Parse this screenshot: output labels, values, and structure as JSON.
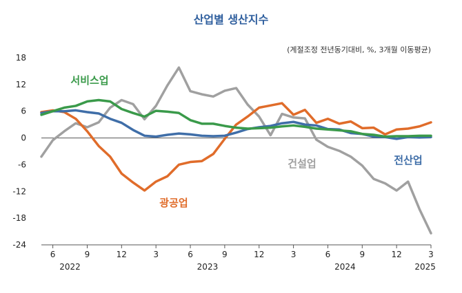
{
  "chart_data": {
    "type": "line",
    "title": "산업별 생산지수",
    "subtitle": "(계절조정 전년동기대비, %, 3개월 이동평균)",
    "ylim": [
      -24,
      18
    ],
    "yticks": [
      18,
      12,
      6,
      0,
      -6,
      -12,
      -18,
      -24
    ],
    "grid": false,
    "legend": "inline labels",
    "month_labels": [
      {
        "index": 1,
        "label": "6"
      },
      {
        "index": 4,
        "label": "9"
      },
      {
        "index": 7,
        "label": "12"
      },
      {
        "index": 10,
        "label": "3"
      },
      {
        "index": 13,
        "label": "6"
      },
      {
        "index": 16,
        "label": "9"
      },
      {
        "index": 19,
        "label": "12"
      },
      {
        "index": 22,
        "label": "3"
      },
      {
        "index": 25,
        "label": "6"
      },
      {
        "index": 28,
        "label": "9"
      },
      {
        "index": 31,
        "label": "12"
      },
      {
        "index": 34,
        "label": "3"
      }
    ],
    "year_labels": [
      {
        "index": 2.5,
        "label": "2022"
      },
      {
        "index": 14.5,
        "label": "2023"
      },
      {
        "index": 26.5,
        "label": "2024"
      },
      {
        "index": 33.5,
        "label": "2025"
      }
    ],
    "x_count": 35,
    "series": [
      {
        "name": "서비스업",
        "color": "#3a9a4a",
        "values": [
          5.2,
          6.0,
          6.8,
          7.2,
          8.2,
          8.5,
          8.2,
          6.5,
          5.6,
          4.8,
          6.1,
          5.9,
          5.6,
          4.0,
          3.2,
          3.2,
          2.7,
          2.3,
          2.1,
          2.2,
          2.3,
          2.6,
          2.8,
          2.5,
          2.1,
          1.9,
          1.7,
          1.5,
          0.9,
          0.7,
          0.3,
          0.4,
          0.4,
          0.5,
          0.5
        ]
      },
      {
        "name": "전산업",
        "color": "#3f6ea8",
        "values": [
          5.6,
          6.0,
          6.0,
          6.2,
          5.8,
          5.5,
          4.3,
          3.4,
          1.8,
          0.5,
          0.3,
          0.7,
          1.0,
          0.8,
          0.5,
          0.4,
          0.5,
          1.2,
          2.0,
          2.4,
          2.7,
          3.3,
          3.6,
          3.0,
          2.8,
          2.0,
          1.9,
          1.1,
          0.9,
          0.3,
          0.2,
          -0.2,
          0.2,
          0.1,
          0.2
        ]
      },
      {
        "name": "광공업",
        "color": "#e06c2a",
        "values": [
          5.8,
          6.2,
          5.8,
          4.3,
          1.5,
          -1.8,
          -4.2,
          -8.0,
          -10.0,
          -11.8,
          -9.8,
          -8.6,
          -6.0,
          -5.4,
          -5.2,
          -3.6,
          -0.2,
          3.0,
          4.8,
          6.8,
          7.3,
          7.8,
          5.2,
          6.3,
          3.4,
          4.3,
          3.2,
          3.7,
          2.2,
          2.3,
          0.8,
          1.9,
          2.1,
          2.6,
          3.5
        ]
      },
      {
        "name": "건설업",
        "color": "#a0a0a0",
        "values": [
          -4.2,
          -0.5,
          1.5,
          3.3,
          2.4,
          3.5,
          6.8,
          8.5,
          7.6,
          4.2,
          7.2,
          11.8,
          15.8,
          10.5,
          9.8,
          9.3,
          10.6,
          11.2,
          7.5,
          4.8,
          0.6,
          5.4,
          4.6,
          4.4,
          -0.4,
          -2.0,
          -2.9,
          -4.2,
          -6.2,
          -9.2,
          -10.2,
          -11.8,
          -9.8,
          -16.0,
          -21.4
        ]
      }
    ],
    "series_labels": [
      {
        "series": 0,
        "text": "서비스업"
      },
      {
        "series": 1,
        "text": "전산업"
      },
      {
        "series": 2,
        "text": "광공업"
      },
      {
        "series": 3,
        "text": "건설업"
      }
    ]
  }
}
